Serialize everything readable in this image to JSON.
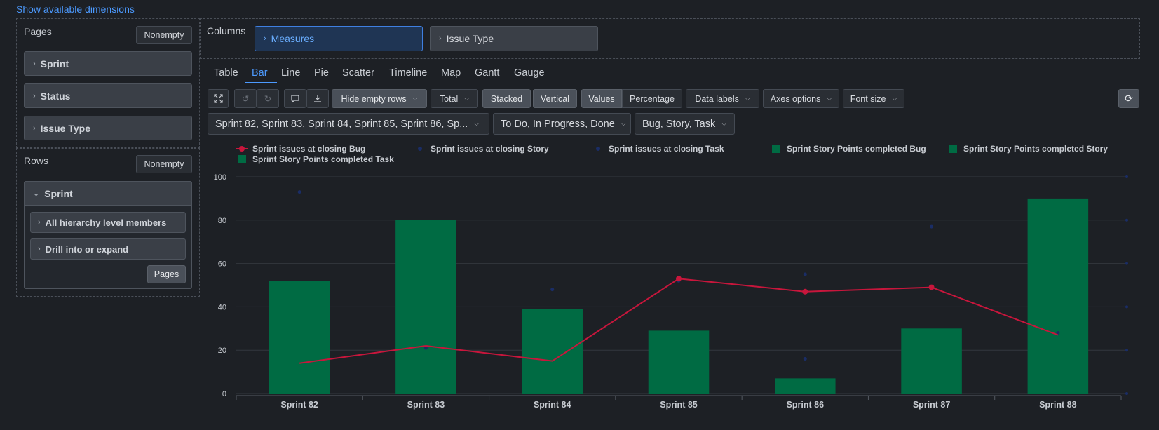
{
  "top_link": "Show available dimensions",
  "pages": {
    "title": "Pages",
    "nonempty": "Nonempty",
    "items": [
      "Sprint",
      "Status",
      "Issue Type"
    ]
  },
  "rows": {
    "title": "Rows",
    "nonempty": "Nonempty",
    "dimension": "Sprint",
    "options": [
      "All hierarchy level members",
      "Drill into or expand"
    ],
    "pages_button": "Pages"
  },
  "columns": {
    "title": "Columns",
    "measures": "Measures",
    "issue_type": "Issue Type"
  },
  "tabs": [
    "Table",
    "Bar",
    "Line",
    "Pie",
    "Scatter",
    "Timeline",
    "Map",
    "Gantt",
    "Gauge"
  ],
  "selected_tab": "Bar",
  "toolbar": {
    "hide_empty": "Hide empty rows",
    "total": "Total",
    "stacked": "Stacked",
    "vertical": "Vertical",
    "values": "Values",
    "percentage": "Percentage",
    "data_labels": "Data labels",
    "axes_options": "Axes options",
    "font_size": "Font size"
  },
  "filters": {
    "sprints": "Sprint 82, Sprint 83, Sprint 84, Sprint 85, Sprint 86, Sp...",
    "statuses": "To Do, In Progress, Done",
    "types": "Bug, Story, Task"
  },
  "colors": {
    "accent": "#4c9aff",
    "bug_line": "#c8163c",
    "story_dots": "#1a2d66",
    "bars": "#006b43",
    "background": "#1d2025"
  },
  "chart_data": {
    "type": "bar",
    "categories": [
      "Sprint 82",
      "Sprint 83",
      "Sprint 84",
      "Sprint 85",
      "Sprint 86",
      "Sprint 87",
      "Sprint 88"
    ],
    "ylim": [
      0,
      100
    ],
    "yticks": [
      0,
      20,
      40,
      60,
      80,
      100
    ],
    "grid": true,
    "legend": "top",
    "series": [
      {
        "name": "Sprint issues at closing Bug",
        "kind": "line",
        "color": "#c8163c",
        "values": [
          14,
          22,
          15,
          53,
          47,
          49,
          27
        ]
      },
      {
        "name": "Sprint issues at closing Story",
        "kind": "dots",
        "color": "#1a2d66",
        "values": [
          93,
          21,
          48,
          52,
          55,
          77,
          28
        ]
      },
      {
        "name": "Sprint issues at closing Task",
        "kind": "dots",
        "color": "#1a2d66",
        "values": [
          null,
          null,
          null,
          null,
          16,
          null,
          null
        ]
      },
      {
        "name": "Sprint Story Points completed Bug",
        "kind": "bar",
        "color": "#006b43",
        "values": [
          null,
          null,
          null,
          null,
          null,
          null,
          null
        ]
      },
      {
        "name": "Sprint Story Points completed Story",
        "kind": "bar",
        "color": "#006b43",
        "values": [
          52,
          80,
          39,
          29,
          7,
          30,
          90
        ]
      },
      {
        "name": "Sprint Story Points completed Task",
        "kind": "bar",
        "color": "#006b43",
        "values": [
          null,
          null,
          null,
          null,
          null,
          null,
          null
        ]
      }
    ]
  }
}
